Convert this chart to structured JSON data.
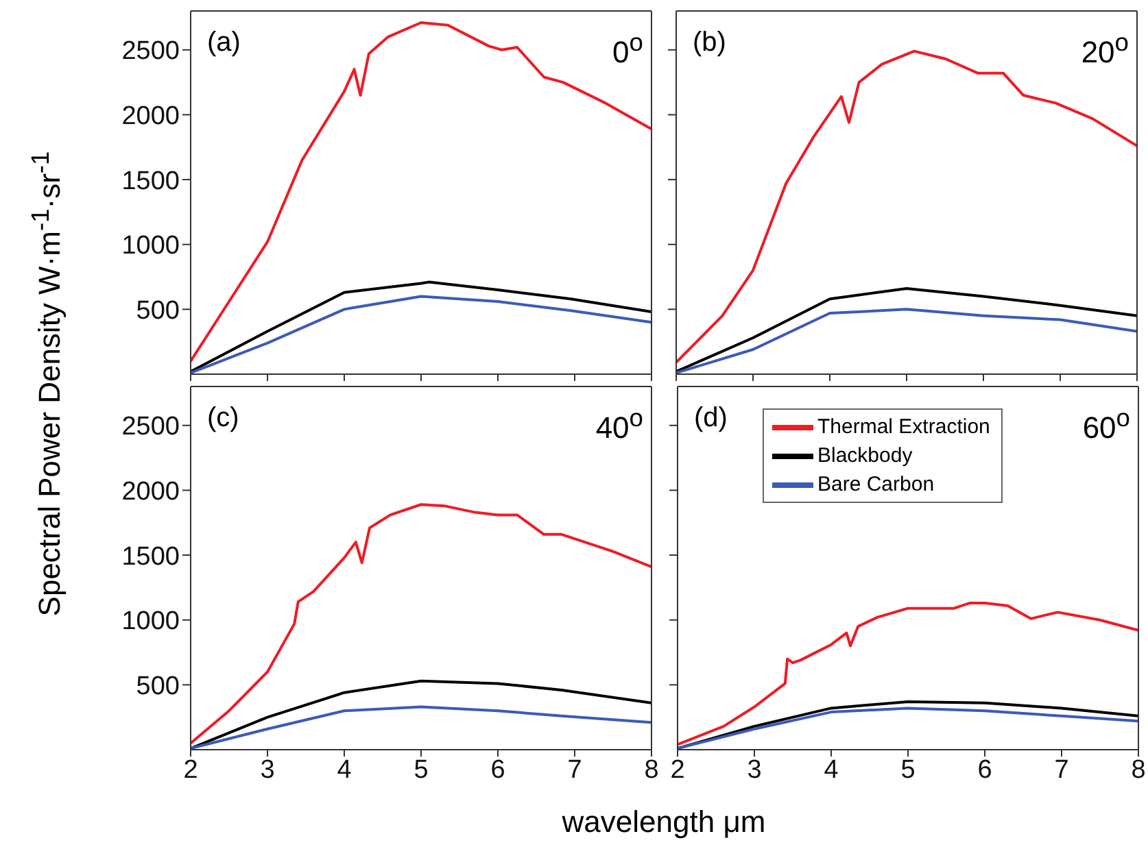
{
  "chart_data": [
    {
      "type": "line",
      "ylabel": "Spectral Power Density   W·m$^{-1}$·sr$^{-1}$",
      "annotations": [
        "(a)",
        "0$^{o}$"
      ],
      "xlim": [
        2,
        8
      ],
      "xticks": [
        2,
        3,
        4,
        5,
        6,
        7,
        8
      ],
      "ylim": [
        0,
        2800
      ],
      "yticks": [
        500,
        1000,
        1500,
        2000,
        2500
      ],
      "tick_labels": "y",
      "legend": false,
      "series": [
        {
          "color": "#ee1c25",
          "x": [
            2,
            2.5,
            3,
            3.45,
            4,
            4.13,
            4.21,
            4.32,
            4.57,
            5,
            5.35,
            5.88,
            6.05,
            6.25,
            6.6,
            6.85,
            7.4,
            8
          ],
          "values": [
            100,
            560,
            1020,
            1650,
            2180,
            2350,
            2150,
            2470,
            2600,
            2710,
            2690,
            2530,
            2500,
            2520,
            2290,
            2250,
            2090,
            1890
          ]
        },
        {
          "color": "#000000",
          "x": [
            2,
            3,
            4,
            5,
            5.1,
            6,
            6.95,
            8
          ],
          "values": [
            20,
            330,
            630,
            700,
            710,
            650,
            580,
            480
          ]
        },
        {
          "color": "#3b5bb8",
          "x": [
            2,
            3,
            4,
            4.2,
            5,
            6,
            6.95,
            8
          ],
          "values": [
            10,
            240,
            500,
            520,
            600,
            560,
            490,
            400
          ]
        }
      ]
    },
    {
      "type": "line",
      "annotations": [
        "(b)",
        "20$^{o}$"
      ],
      "xlim": [
        2,
        8
      ],
      "xticks": [
        2,
        3,
        4,
        5,
        6,
        7,
        8
      ],
      "ylim": [
        0,
        2800
      ],
      "yticks": [
        500,
        1000,
        1500,
        2000,
        2500
      ],
      "tick_labels": false,
      "legend": false,
      "series": [
        {
          "color": "#ee1c25",
          "x": [
            2,
            2.6,
            3,
            3.43,
            3.79,
            4.15,
            4.25,
            4.38,
            4.68,
            5.1,
            5.51,
            5.93,
            6.26,
            6.52,
            6.94,
            7.42,
            8
          ],
          "values": [
            90,
            450,
            800,
            1470,
            1830,
            2140,
            1940,
            2250,
            2390,
            2490,
            2430,
            2320,
            2320,
            2150,
            2090,
            1970,
            1760
          ]
        },
        {
          "color": "#000000",
          "x": [
            2,
            3,
            4,
            5,
            6,
            7,
            8
          ],
          "values": [
            20,
            280,
            580,
            660,
            600,
            530,
            450
          ]
        },
        {
          "color": "#3b5bb8",
          "x": [
            2,
            3,
            4,
            5,
            6,
            7,
            8
          ],
          "values": [
            10,
            190,
            470,
            500,
            450,
            420,
            330
          ]
        }
      ]
    },
    {
      "type": "line",
      "xlabel": "wavelength  μm",
      "annotations": [
        "(c)",
        "40$^{o}$"
      ],
      "xlim": [
        2,
        8
      ],
      "xticks": [
        2,
        3,
        4,
        5,
        6,
        7,
        8
      ],
      "ylim": [
        0,
        2800
      ],
      "yticks": [
        500,
        1000,
        1500,
        2000,
        2500
      ],
      "legend": false,
      "series": [
        {
          "color": "#ee1c25",
          "x": [
            2,
            2.5,
            3,
            3.35,
            3.4,
            3.6,
            4,
            4.15,
            4.23,
            4.33,
            4.6,
            5,
            5.3,
            5.7,
            6,
            6.25,
            6.6,
            6.83,
            7.49,
            8
          ],
          "values": [
            50,
            300,
            600,
            970,
            1140,
            1220,
            1480,
            1600,
            1440,
            1710,
            1810,
            1890,
            1880,
            1830,
            1810,
            1810,
            1660,
            1660,
            1530,
            1410
          ]
        },
        {
          "color": "#000000",
          "x": [
            2,
            3,
            4,
            5,
            6,
            6.83,
            8
          ],
          "values": [
            10,
            250,
            440,
            530,
            510,
            460,
            360
          ]
        },
        {
          "color": "#3b5bb8",
          "x": [
            2,
            3,
            4,
            5,
            6,
            6.83,
            8
          ],
          "values": [
            10,
            160,
            300,
            330,
            300,
            260,
            210
          ]
        }
      ]
    },
    {
      "type": "line",
      "annotations": [
        "(d)",
        "60$^{o}$"
      ],
      "xlim": [
        2,
        8
      ],
      "xticks": [
        2,
        3,
        4,
        5,
        6,
        7,
        8
      ],
      "ylim": [
        0,
        2800
      ],
      "yticks": [
        500,
        1000,
        1500,
        2000,
        2500
      ],
      "tick_labels": "x",
      "legend": "top",
      "series": [
        {
          "name": "Thermal Extraction",
          "color": "#ee1c25",
          "x": [
            2,
            2.6,
            3,
            3.4,
            3.43,
            3.5,
            3.6,
            4,
            4.2,
            4.25,
            4.35,
            4.6,
            5,
            5.6,
            5.8,
            6,
            6.3,
            6.6,
            6.95,
            7.5,
            8
          ],
          "values": [
            40,
            180,
            330,
            510,
            700,
            670,
            690,
            810,
            900,
            800,
            950,
            1020,
            1090,
            1090,
            1130,
            1130,
            1110,
            1010,
            1060,
            1000,
            920
          ]
        },
        {
          "name": "Blackbody",
          "color": "#000000",
          "x": [
            2,
            3,
            4,
            5,
            6,
            7,
            8
          ],
          "values": [
            10,
            180,
            320,
            370,
            360,
            320,
            260
          ]
        },
        {
          "name": "Bare Carbon",
          "color": "#3b5bb8",
          "x": [
            2,
            3,
            4,
            5,
            6,
            7,
            8
          ],
          "values": [
            10,
            160,
            290,
            320,
            300,
            260,
            220
          ]
        }
      ]
    }
  ]
}
